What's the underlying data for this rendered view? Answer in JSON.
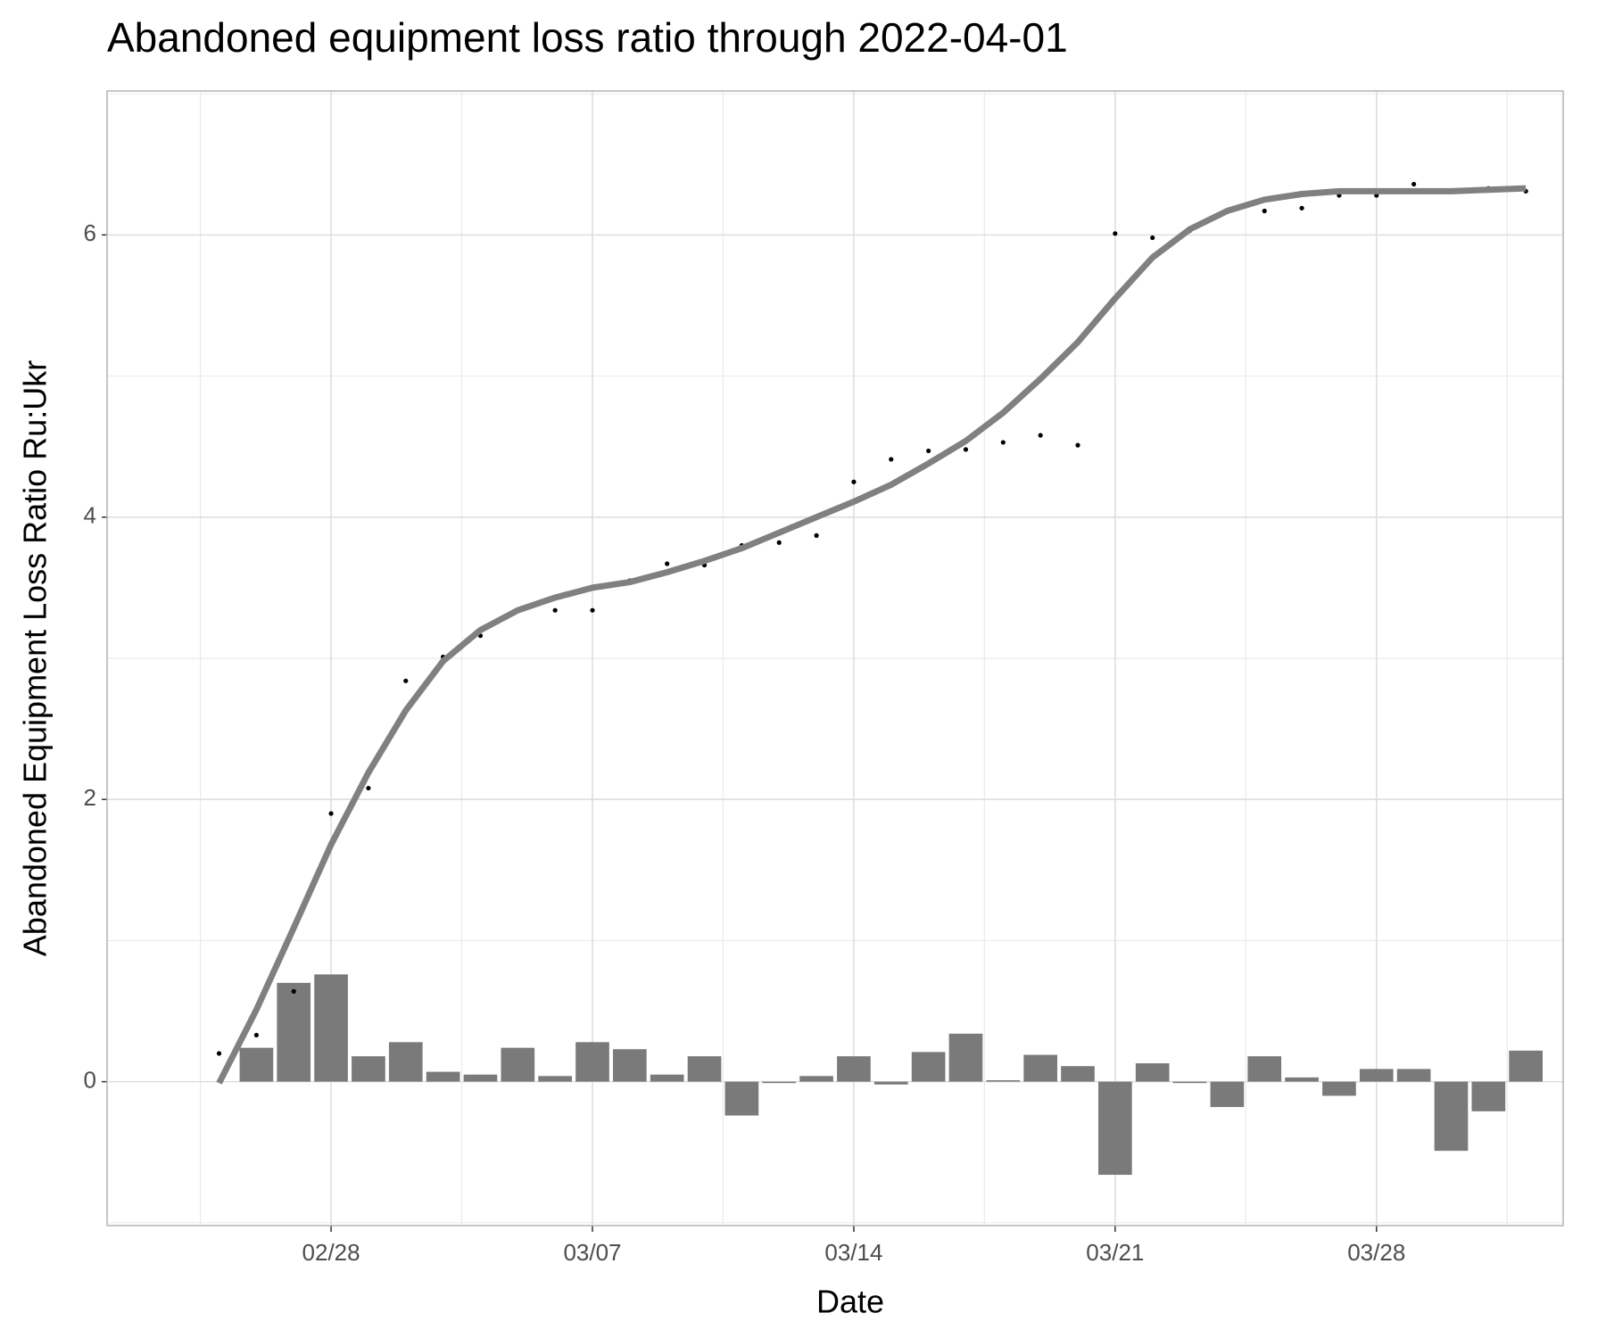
{
  "chart_data": {
    "type": "combo",
    "title": "Abandoned equipment loss ratio through 2022-04-01",
    "x_label": "Date",
    "y_label": "Abandoned Equipment Loss Ratio Ru:Ukr",
    "x": [
      "02/25",
      "02/26",
      "02/27",
      "02/28",
      "03/01",
      "03/02",
      "03/03",
      "03/04",
      "03/05",
      "03/06",
      "03/07",
      "03/08",
      "03/09",
      "03/10",
      "03/11",
      "03/12",
      "03/13",
      "03/14",
      "03/15",
      "03/16",
      "03/17",
      "03/18",
      "03/19",
      "03/20",
      "03/21",
      "03/22",
      "03/23",
      "03/24",
      "03/25",
      "03/26",
      "03/27",
      "03/28",
      "03/29",
      "03/30",
      "03/31",
      "04/01"
    ],
    "series": [
      {
        "type": "bar",
        "color": "#7a7a7a",
        "values": [
          null,
          0.24,
          0.7,
          0.76,
          0.18,
          0.28,
          0.07,
          0.05,
          0.24,
          0.04,
          0.28,
          0.23,
          0.05,
          0.18,
          -0.24,
          -0.01,
          0.04,
          0.18,
          -0.02,
          0.21,
          0.34,
          0.01,
          0.19,
          0.11,
          -0.66,
          0.13,
          -0.01,
          -0.18,
          0.18,
          0.03,
          -0.1,
          0.09,
          0.09,
          -0.49,
          -0.21,
          0.22
        ]
      },
      {
        "type": "scatter",
        "color": "#000000",
        "values": [
          0.2,
          0.33,
          0.64,
          1.9,
          2.08,
          2.84,
          3.01,
          3.16,
          3.34,
          3.34,
          3.34,
          3.55,
          3.67,
          3.66,
          3.8,
          3.82,
          3.87,
          4.25,
          4.41,
          4.47,
          4.48,
          4.53,
          4.58,
          4.51,
          6.01,
          5.98,
          6.03,
          6.17,
          6.17,
          6.19,
          6.28,
          6.28,
          6.36,
          6.31,
          6.33,
          6.31
        ]
      },
      {
        "type": "line",
        "color": "#808080",
        "values": [
          -0.01,
          0.51,
          1.09,
          1.68,
          2.19,
          2.63,
          2.98,
          3.2,
          3.34,
          3.43,
          3.5,
          3.54,
          3.61,
          3.69,
          3.78,
          3.89,
          4.0,
          4.11,
          4.23,
          4.38,
          4.54,
          4.74,
          4.98,
          5.24,
          5.55,
          5.84,
          6.04,
          6.17,
          6.25,
          6.29,
          6.31,
          6.31,
          6.31,
          6.31,
          6.32,
          6.33
        ]
      }
    ],
    "xlim": [
      "02/22",
      "04/02"
    ],
    "xticks": [
      "02/28",
      "03/07",
      "03/14",
      "03/21",
      "03/28"
    ],
    "ylim": [
      -1.02,
      7.02
    ],
    "yticks": [
      0,
      2,
      4,
      6
    ],
    "grid": true
  }
}
